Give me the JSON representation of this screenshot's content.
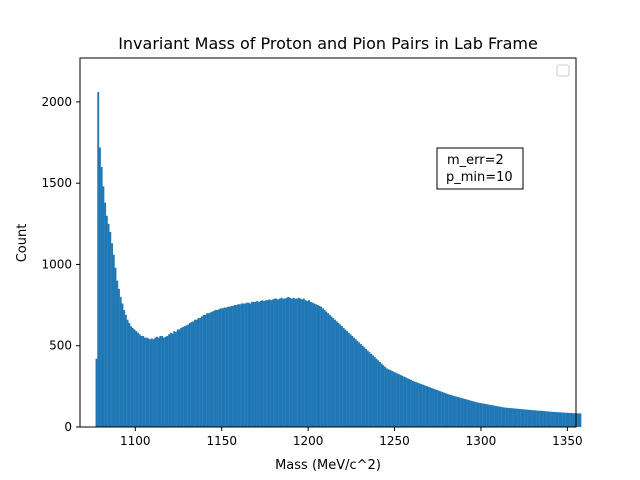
{
  "chart_data": {
    "type": "bar",
    "title": "Invariant Mass of Proton and Pion Pairs in Lab Frame",
    "xlabel": "Mass (MeV/c^2)",
    "ylabel": "Count",
    "xlim": [
      1068,
      1355
    ],
    "ylim": [
      0,
      2270
    ],
    "xticks": [
      1100,
      1150,
      1200,
      1250,
      1300,
      1350
    ],
    "yticks": [
      0,
      500,
      1000,
      1500,
      2000
    ],
    "annotation": [
      "m_err=2",
      "p_min=10"
    ],
    "legend": "top-right, empty",
    "grid": false,
    "bar_color": "#1f77b4",
    "histogram": {
      "bin_start": 1077,
      "bin_width": 1,
      "counts": [
        420,
        2060,
        1720,
        1600,
        1480,
        1380,
        1300,
        1250,
        1200,
        1130,
        1060,
        980,
        900,
        850,
        800,
        760,
        720,
        690,
        660,
        640,
        620,
        610,
        600,
        590,
        580,
        570,
        560,
        560,
        550,
        550,
        545,
        540,
        545,
        540,
        550,
        555,
        550,
        560,
        560,
        550,
        555,
        560,
        570,
        580,
        575,
        590,
        585,
        600,
        600,
        610,
        615,
        620,
        625,
        630,
        640,
        645,
        650,
        660,
        660,
        670,
        670,
        680,
        690,
        690,
        700,
        700,
        705,
        710,
        715,
        720,
        720,
        725,
        730,
        730,
        735,
        735,
        740,
        740,
        745,
        745,
        750,
        750,
        755,
        755,
        760,
        760,
        760,
        765,
        765,
        760,
        770,
        770,
        770,
        775,
        770,
        775,
        780,
        775,
        780,
        780,
        785,
        780,
        785,
        790,
        790,
        785,
        790,
        795,
        790,
        790,
        795,
        800,
        795,
        790,
        795,
        790,
        790,
        795,
        790,
        785,
        790,
        780,
        775,
        780,
        770,
        765,
        760,
        755,
        750,
        745,
        740,
        730,
        720,
        710,
        700,
        690,
        680,
        670,
        660,
        650,
        640,
        630,
        620,
        610,
        600,
        590,
        580,
        570,
        560,
        550,
        540,
        530,
        520,
        510,
        500,
        490,
        480,
        470,
        460,
        450,
        440,
        430,
        420,
        410,
        400,
        390,
        380,
        370,
        360,
        355,
        350,
        345,
        340,
        335,
        330,
        325,
        320,
        315,
        310,
        305,
        300,
        295,
        290,
        285,
        280,
        276,
        272,
        268,
        264,
        260,
        256,
        252,
        248,
        244,
        240,
        236,
        232,
        228,
        224,
        220,
        216,
        212,
        208,
        204,
        200,
        197,
        194,
        191,
        188,
        185,
        182,
        179,
        176,
        173,
        170,
        167,
        164,
        161,
        158,
        155,
        152,
        150,
        148,
        146,
        144,
        142,
        140,
        138,
        136,
        134,
        132,
        130,
        128,
        126,
        124,
        122,
        120,
        119,
        118,
        117,
        116,
        115,
        114,
        113,
        112,
        111,
        110,
        109,
        108,
        107,
        106,
        105,
        104,
        103,
        102,
        101,
        100,
        100,
        99,
        98,
        97,
        96,
        95,
        94,
        93,
        92,
        92,
        91,
        90,
        90,
        89,
        88,
        88,
        87,
        86,
        86,
        85,
        85,
        84,
        84,
        83
      ]
    }
  }
}
